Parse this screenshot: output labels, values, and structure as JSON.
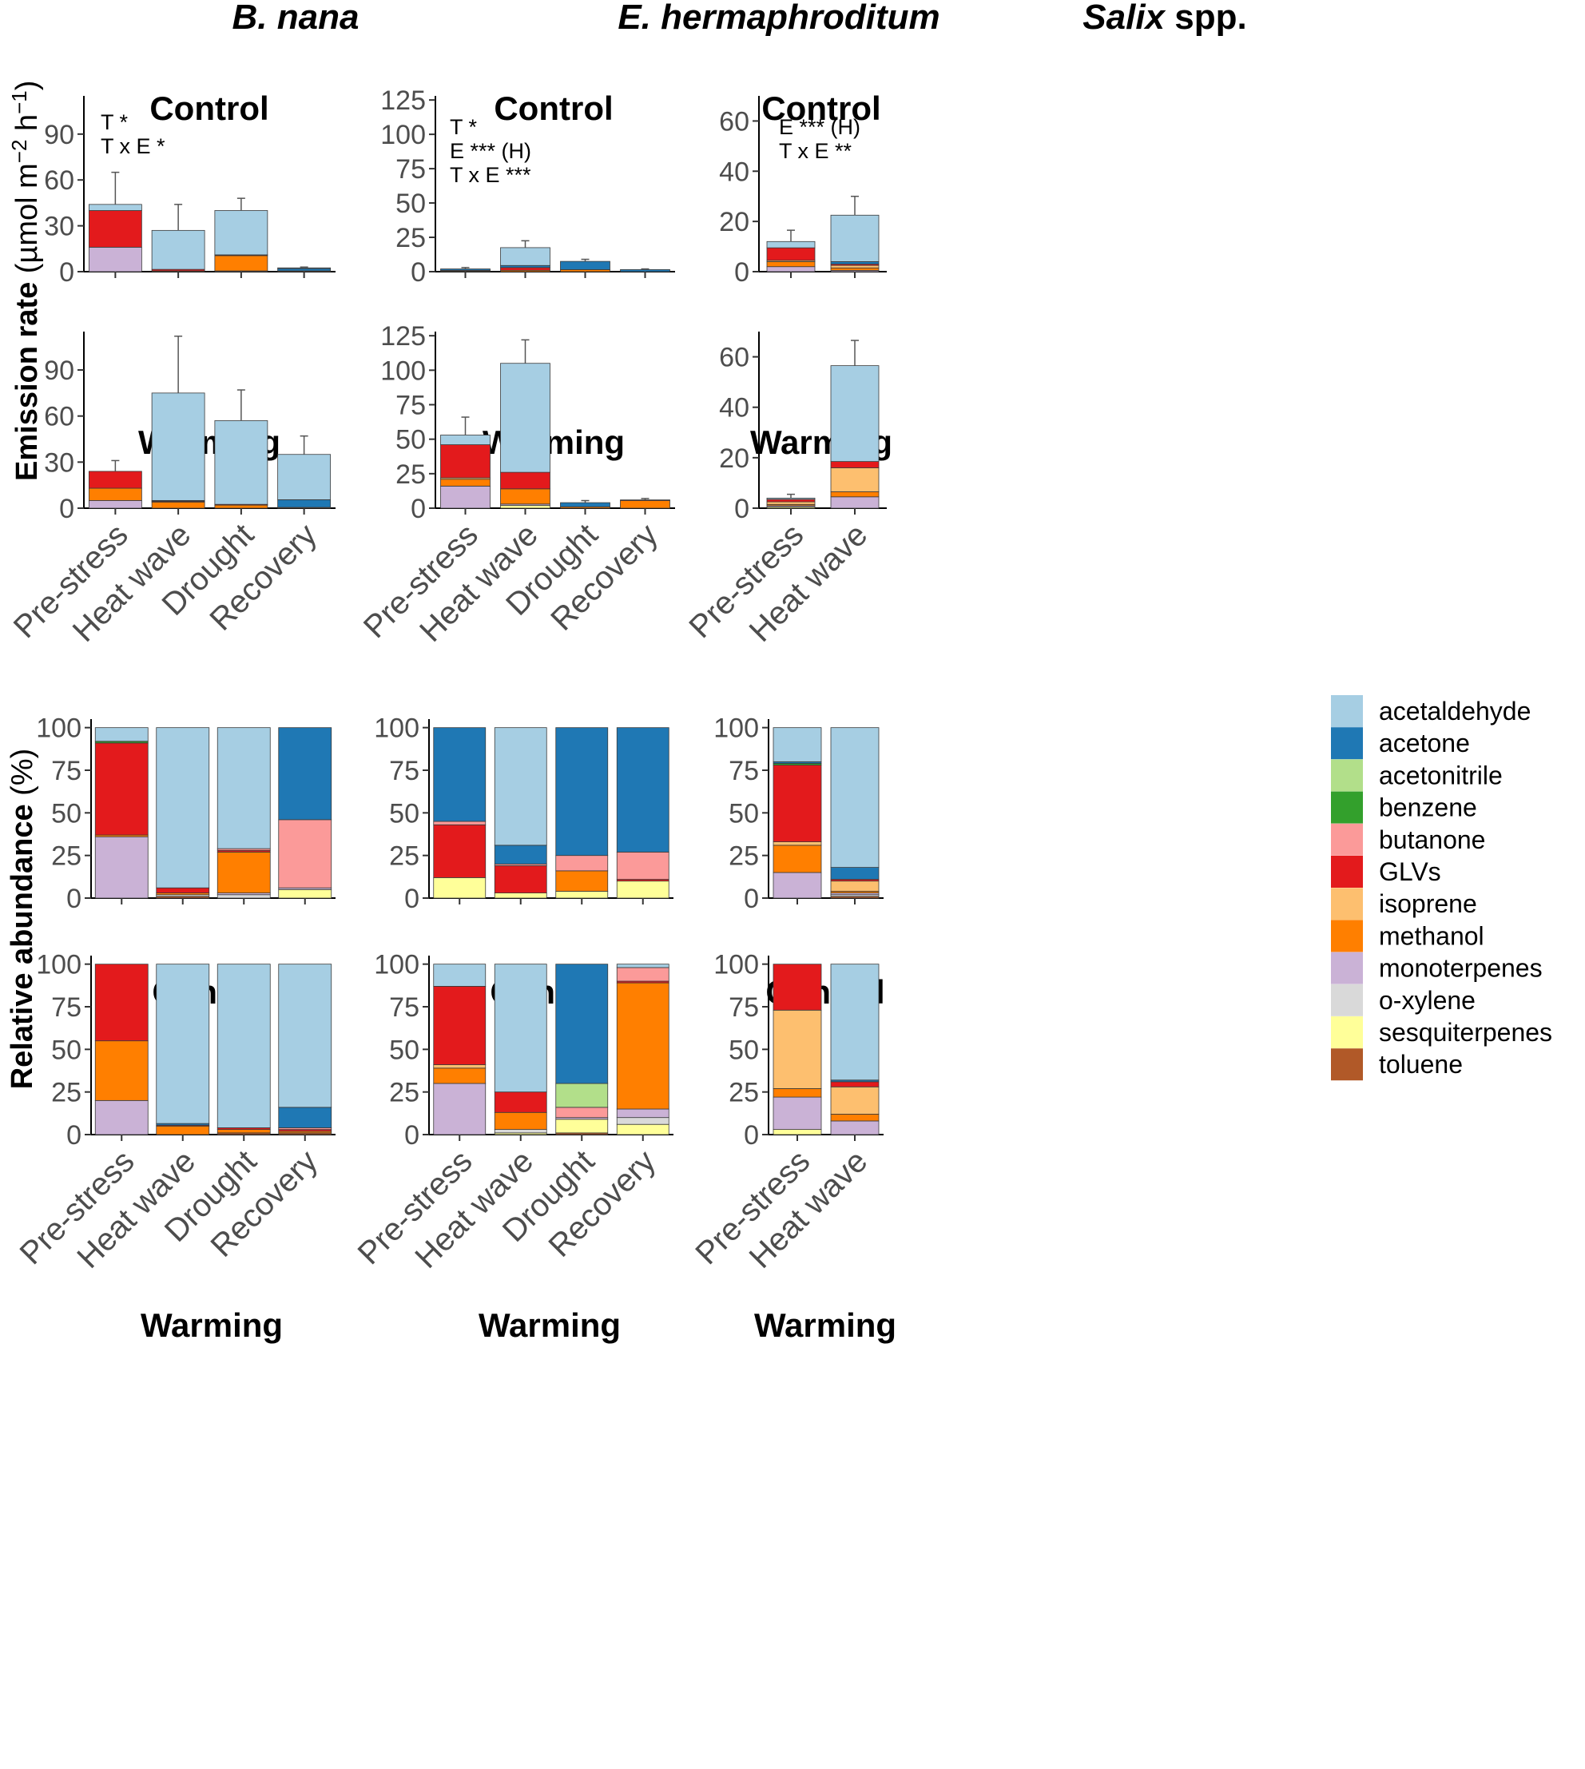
{
  "colors": {
    "acetaldehyde": "#a6cee3",
    "acetone": "#1f78b4",
    "acetonitrile": "#b2df8a",
    "benzene": "#33a02c",
    "butanone": "#fb9a99",
    "GLVs": "#e31a1c",
    "isoprene": "#fdbf6f",
    "methanol": "#ff7f00",
    "monoterpenes": "#cab2d6",
    "o-xylene": "#d9d9d9",
    "sesquiterpenes": "#ffff99",
    "toluene": "#b15928"
  },
  "labels": {
    "species": [
      "B. nana",
      "E. hermaphroditum",
      "Salix"
    ],
    "species_suffix": " spp.",
    "control": "Control",
    "warming": "Warming",
    "ylabel_top_main": "Emission rate ",
    "ylabel_top_unit_a": "(µmol m",
    "ylabel_top_exp1": "−2",
    "ylabel_top_unit_b": " h",
    "ylabel_top_exp2": "−1",
    "ylabel_top_unit_c": ")",
    "ylabel_bottom_main": "Relative abundance ",
    "ylabel_bottom_unit": "(%)"
  },
  "chart_data": [
    {
      "type": "bar",
      "stacked": true,
      "species": "B. nana",
      "treatment": "Control",
      "measure": "Emission rate (µmol m−2 h−1)",
      "categories": [
        "Pre-stress",
        "Heat wave",
        "Drought",
        "Recovery"
      ],
      "ylim": [
        0,
        115
      ],
      "yticks": [
        0,
        30,
        60,
        90
      ],
      "annotations": [
        "T *",
        "T x E *"
      ],
      "series": [
        {
          "name": "monoterpenes",
          "values": [
            16,
            0,
            0.5,
            0
          ]
        },
        {
          "name": "methanol",
          "values": [
            0,
            0.5,
            10,
            0.5
          ]
        },
        {
          "name": "GLVs",
          "values": [
            24,
            1,
            0.5,
            0
          ]
        },
        {
          "name": "acetone",
          "values": [
            0,
            0,
            0,
            1.5
          ]
        },
        {
          "name": "acetaldehyde",
          "values": [
            4,
            25.5,
            29,
            0.5
          ]
        }
      ],
      "errors": [
        21,
        17,
        8,
        0.5
      ]
    },
    {
      "type": "bar",
      "stacked": true,
      "species": "B. nana",
      "treatment": "Warming",
      "measure": "Emission rate (µmol m−2 h−1)",
      "categories": [
        "Pre-stress",
        "Heat wave",
        "Drought",
        "Recovery"
      ],
      "ylim": [
        0,
        115
      ],
      "yticks": [
        0,
        30,
        60,
        90
      ],
      "series": [
        {
          "name": "monoterpenes",
          "values": [
            5,
            0,
            0,
            0
          ]
        },
        {
          "name": "methanol",
          "values": [
            8,
            4,
            2,
            0.5
          ]
        },
        {
          "name": "GLVs",
          "values": [
            11,
            0.5,
            0.5,
            0
          ]
        },
        {
          "name": "acetone",
          "values": [
            0,
            0.5,
            0,
            5
          ]
        },
        {
          "name": "acetaldehyde",
          "values": [
            0,
            70,
            54.5,
            29.5
          ]
        }
      ],
      "errors": [
        7,
        37,
        20,
        12
      ]
    },
    {
      "type": "bar",
      "stacked": true,
      "species": "E. hermaphroditum",
      "treatment": "Control",
      "measure": "Emission rate (µmol m−2 h−1)",
      "categories": [
        "Pre-stress",
        "Heat wave",
        "Drought",
        "Recovery"
      ],
      "ylim": [
        0,
        128
      ],
      "yticks": [
        0,
        25,
        50,
        75,
        100,
        125
      ],
      "annotations": [
        "T *",
        "E *** (H)",
        "T x E ***"
      ],
      "series": [
        {
          "name": "methanol",
          "values": [
            0.5,
            1,
            1.5,
            0
          ]
        },
        {
          "name": "GLVs",
          "values": [
            0.5,
            2,
            0,
            0
          ]
        },
        {
          "name": "acetone",
          "values": [
            1,
            1.5,
            6,
            1.5
          ]
        },
        {
          "name": "acetaldehyde",
          "values": [
            0,
            13,
            0,
            0
          ]
        }
      ],
      "errors": [
        1,
        5,
        1.5,
        0.5
      ]
    },
    {
      "type": "bar",
      "stacked": true,
      "species": "E. hermaphroditum",
      "treatment": "Warming",
      "measure": "Emission rate (µmol m−2 h−1)",
      "categories": [
        "Pre-stress",
        "Heat wave",
        "Drought",
        "Recovery"
      ],
      "ylim": [
        0,
        128
      ],
      "yticks": [
        0,
        25,
        50,
        75,
        100,
        125
      ],
      "series": [
        {
          "name": "sesquiterpenes",
          "values": [
            0,
            2,
            0,
            0
          ]
        },
        {
          "name": "monoterpenes",
          "values": [
            16,
            1,
            0,
            0
          ]
        },
        {
          "name": "methanol",
          "values": [
            5,
            11,
            1,
            5.5
          ]
        },
        {
          "name": "isoprene",
          "values": [
            1,
            0,
            0,
            0
          ]
        },
        {
          "name": "GLVs",
          "values": [
            24,
            12,
            0,
            0.5
          ]
        },
        {
          "name": "acetone",
          "values": [
            0,
            0,
            3,
            0
          ]
        },
        {
          "name": "acetaldehyde",
          "values": [
            7,
            79,
            0,
            0
          ]
        }
      ],
      "errors": [
        13,
        17,
        1.5,
        1
      ]
    },
    {
      "type": "bar",
      "stacked": true,
      "species": "Salix spp.",
      "treatment": "Control",
      "measure": "Emission rate (µmol m−2 h−1)",
      "categories": [
        "Pre-stress",
        "Heat wave"
      ],
      "ylim": [
        0,
        70
      ],
      "yticks": [
        0,
        20,
        40,
        60
      ],
      "annotations": [
        "E *** (H)",
        "T x E **"
      ],
      "series": [
        {
          "name": "monoterpenes",
          "values": [
            2,
            0.5
          ]
        },
        {
          "name": "methanol",
          "values": [
            2,
            1
          ]
        },
        {
          "name": "isoprene",
          "values": [
            0.5,
            1
          ]
        },
        {
          "name": "GLVs",
          "values": [
            5,
            0.5
          ]
        },
        {
          "name": "acetone",
          "values": [
            0,
            1
          ]
        },
        {
          "name": "acetaldehyde",
          "values": [
            2.5,
            18.5
          ]
        }
      ],
      "errors": [
        4.5,
        7.5
      ]
    },
    {
      "type": "bar",
      "stacked": true,
      "species": "Salix spp.",
      "treatment": "Warming",
      "measure": "Emission rate (µmol m−2 h−1)",
      "categories": [
        "Pre-stress",
        "Heat wave"
      ],
      "ylim": [
        0,
        70
      ],
      "yticks": [
        0,
        20,
        40,
        60
      ],
      "series": [
        {
          "name": "sesquiterpenes",
          "values": [
            0.5,
            0
          ]
        },
        {
          "name": "monoterpenes",
          "values": [
            0.5,
            4.5
          ]
        },
        {
          "name": "methanol",
          "values": [
            0.5,
            2
          ]
        },
        {
          "name": "isoprene",
          "values": [
            1,
            9.5
          ]
        },
        {
          "name": "GLVs",
          "values": [
            1,
            2.5
          ]
        },
        {
          "name": "acetaldehyde",
          "values": [
            0.5,
            38
          ]
        }
      ],
      "errors": [
        1.5,
        10
      ]
    },
    {
      "type": "bar",
      "stacked": true,
      "species": "B. nana",
      "treatment": "Control",
      "measure": "Relative abundance (%)",
      "categories": [
        "Pre-stress",
        "Heat wave",
        "Drought",
        "Recovery"
      ],
      "ylim": [
        0,
        105
      ],
      "yticks": [
        0,
        25,
        50,
        75,
        100
      ],
      "series": [
        {
          "name": "toluene",
          "values": [
            0,
            1,
            0,
            0
          ]
        },
        {
          "name": "o-xylene",
          "values": [
            0,
            1,
            2,
            0
          ]
        },
        {
          "name": "sesquiterpenes",
          "values": [
            0,
            0,
            0,
            5
          ]
        },
        {
          "name": "monoterpenes",
          "values": [
            36,
            0,
            1,
            1
          ]
        },
        {
          "name": "methanol",
          "values": [
            1,
            1,
            24,
            0
          ]
        },
        {
          "name": "GLVs",
          "values": [
            54,
            3,
            1,
            0
          ]
        },
        {
          "name": "butanone",
          "values": [
            0,
            0,
            1,
            40
          ]
        },
        {
          "name": "benzene",
          "values": [
            1,
            0,
            0,
            0
          ]
        },
        {
          "name": "acetone",
          "values": [
            0,
            0,
            0,
            54
          ]
        },
        {
          "name": "acetaldehyde",
          "values": [
            8,
            94,
            71,
            0
          ]
        }
      ]
    },
    {
      "type": "bar",
      "stacked": true,
      "species": "B. nana",
      "treatment": "Warming",
      "measure": "Relative abundance (%)",
      "categories": [
        "Pre-stress",
        "Heat wave",
        "Drought",
        "Recovery"
      ],
      "ylim": [
        0,
        105
      ],
      "yticks": [
        0,
        25,
        50,
        75,
        100
      ],
      "series": [
        {
          "name": "toluene",
          "values": [
            0,
            0,
            1,
            1
          ]
        },
        {
          "name": "monoterpenes",
          "values": [
            20,
            0,
            0,
            0
          ]
        },
        {
          "name": "methanol",
          "values": [
            35,
            5,
            2,
            1
          ]
        },
        {
          "name": "GLVs",
          "values": [
            45,
            0.5,
            1,
            1
          ]
        },
        {
          "name": "butanone",
          "values": [
            0,
            0,
            0,
            1
          ]
        },
        {
          "name": "acetone",
          "values": [
            0,
            1,
            0,
            12
          ]
        },
        {
          "name": "acetaldehyde",
          "values": [
            0,
            93.5,
            96,
            84
          ]
        }
      ]
    },
    {
      "type": "bar",
      "stacked": true,
      "species": "E. hermaphroditum",
      "treatment": "Control",
      "measure": "Relative abundance (%)",
      "categories": [
        "Pre-stress",
        "Heat wave",
        "Drought",
        "Recovery"
      ],
      "ylim": [
        0,
        105
      ],
      "yticks": [
        0,
        25,
        50,
        75,
        100
      ],
      "series": [
        {
          "name": "sesquiterpenes",
          "values": [
            12,
            3,
            4,
            10
          ]
        },
        {
          "name": "methanol",
          "values": [
            0,
            0,
            12,
            0
          ]
        },
        {
          "name": "GLVs",
          "values": [
            31,
            16,
            0,
            1
          ]
        },
        {
          "name": "butanone",
          "values": [
            2,
            1,
            9,
            16
          ]
        },
        {
          "name": "acetone",
          "values": [
            55,
            11,
            75,
            73
          ]
        },
        {
          "name": "acetaldehyde",
          "values": [
            0,
            69,
            0,
            0
          ]
        }
      ]
    },
    {
      "type": "bar",
      "stacked": true,
      "species": "E. hermaphroditum",
      "treatment": "Warming",
      "measure": "Relative abundance (%)",
      "categories": [
        "Pre-stress",
        "Heat wave",
        "Drought",
        "Recovery"
      ],
      "ylim": [
        0,
        105
      ],
      "yticks": [
        0,
        25,
        50,
        75,
        100
      ],
      "series": [
        {
          "name": "toluene",
          "values": [
            0,
            0,
            1,
            0
          ]
        },
        {
          "name": "sesquiterpenes",
          "values": [
            0,
            1,
            8,
            6
          ]
        },
        {
          "name": "o-xylene",
          "values": [
            0,
            2,
            0,
            4
          ]
        },
        {
          "name": "monoterpenes",
          "values": [
            30,
            0,
            1,
            5
          ]
        },
        {
          "name": "methanol",
          "values": [
            9,
            10,
            0,
            74
          ]
        },
        {
          "name": "isoprene",
          "values": [
            2,
            0,
            0,
            0
          ]
        },
        {
          "name": "GLVs",
          "values": [
            46,
            12,
            0,
            1
          ]
        },
        {
          "name": "butanone",
          "values": [
            0,
            0,
            6,
            8
          ]
        },
        {
          "name": "acetonitrile",
          "values": [
            0,
            0,
            14,
            0
          ]
        },
        {
          "name": "acetone",
          "values": [
            0,
            0,
            70,
            0
          ]
        },
        {
          "name": "acetaldehyde",
          "values": [
            13,
            75,
            0,
            2
          ]
        }
      ]
    },
    {
      "type": "bar",
      "stacked": true,
      "species": "Salix spp.",
      "treatment": "Control",
      "measure": "Relative abundance (%)",
      "categories": [
        "Pre-stress",
        "Heat wave"
      ],
      "ylim": [
        0,
        105
      ],
      "yticks": [
        0,
        25,
        50,
        75,
        100
      ],
      "series": [
        {
          "name": "toluene",
          "values": [
            0,
            1
          ]
        },
        {
          "name": "o-xylene",
          "values": [
            0,
            1
          ]
        },
        {
          "name": "monoterpenes",
          "values": [
            15,
            1
          ]
        },
        {
          "name": "methanol",
          "values": [
            16,
            1
          ]
        },
        {
          "name": "isoprene",
          "values": [
            2,
            6
          ]
        },
        {
          "name": "GLVs",
          "values": [
            45,
            1
          ]
        },
        {
          "name": "benzene",
          "values": [
            1,
            0
          ]
        },
        {
          "name": "acetone",
          "values": [
            1,
            7
          ]
        },
        {
          "name": "acetaldehyde",
          "values": [
            20,
            82
          ]
        }
      ]
    },
    {
      "type": "bar",
      "stacked": true,
      "species": "Salix spp.",
      "treatment": "Warming",
      "measure": "Relative abundance (%)",
      "categories": [
        "Pre-stress",
        "Heat wave"
      ],
      "ylim": [
        0,
        105
      ],
      "yticks": [
        0,
        25,
        50,
        75,
        100
      ],
      "series": [
        {
          "name": "sesquiterpenes",
          "values": [
            3,
            0
          ]
        },
        {
          "name": "monoterpenes",
          "values": [
            19,
            8
          ]
        },
        {
          "name": "methanol",
          "values": [
            5,
            4
          ]
        },
        {
          "name": "isoprene",
          "values": [
            46,
            16
          ]
        },
        {
          "name": "GLVs",
          "values": [
            27,
            3
          ]
        },
        {
          "name": "acetone",
          "values": [
            0,
            1
          ]
        },
        {
          "name": "acetaldehyde",
          "values": [
            0,
            68
          ]
        }
      ]
    }
  ],
  "legend": {
    "position": "right",
    "entries": [
      "acetaldehyde",
      "acetone",
      "acetonitrile",
      "benzene",
      "butanone",
      "GLVs",
      "isoprene",
      "methanol",
      "monoterpenes",
      "o-xylene",
      "sesquiterpenes",
      "toluene"
    ]
  }
}
